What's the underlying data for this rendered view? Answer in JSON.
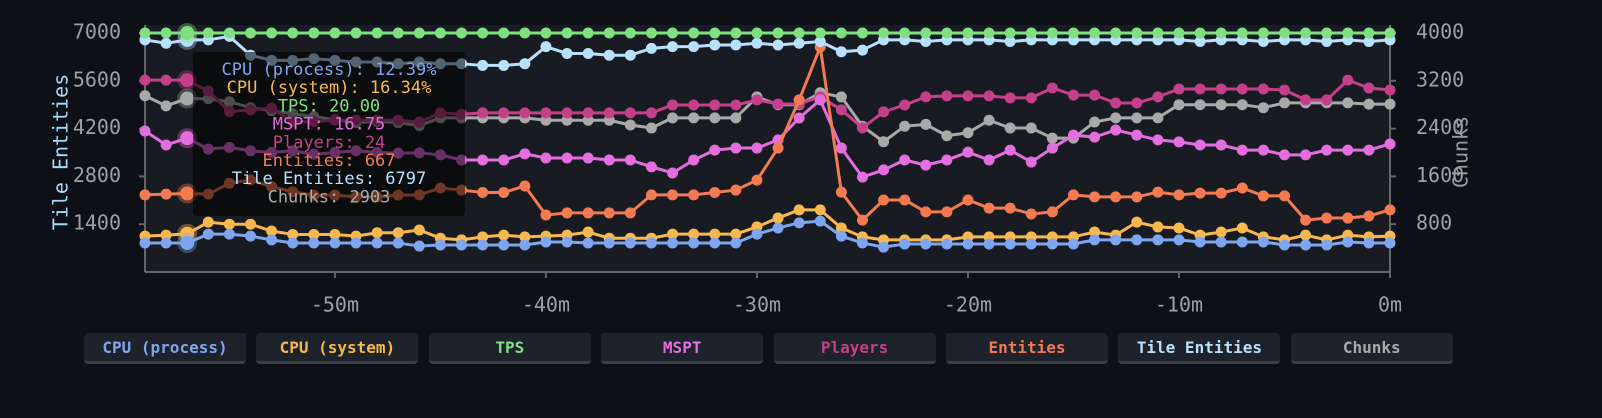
{
  "chart_data": {
    "type": "line",
    "ylabel": "Tile Entities",
    "y2label": "Chunks",
    "xlim": [
      -59,
      0
    ],
    "xticks": [
      {
        "value": -50,
        "label": "-50m"
      },
      {
        "value": -40,
        "label": "-40m"
      },
      {
        "value": -30,
        "label": "-30m"
      },
      {
        "value": -20,
        "label": "-20m"
      },
      {
        "value": -10,
        "label": "-10m"
      },
      {
        "value": 0,
        "label": "0m"
      }
    ],
    "ylim": [
      0,
      7000
    ],
    "yticks": [
      1400,
      2800,
      4200,
      5600,
      7000
    ],
    "y2lim": [
      0,
      4000
    ],
    "y2ticks": [
      800,
      1600,
      2400,
      3200,
      4000
    ],
    "x": [
      -59,
      -58,
      -57,
      -56,
      -55,
      -54,
      -53,
      -52,
      -51,
      -50,
      -49,
      -48,
      -47,
      -46,
      -45,
      -44,
      -43,
      -42,
      -41,
      -40,
      -39,
      -38,
      -37,
      -36,
      -35,
      -34,
      -33,
      -32,
      -31,
      -30,
      -29,
      -28,
      -27,
      -26,
      -25,
      -24,
      -23,
      -22,
      -21,
      -20,
      -19,
      -18,
      -17,
      -16,
      -15,
      -14,
      -13,
      -12,
      -11,
      -10,
      -9,
      -8,
      -7,
      -6,
      -5,
      -4,
      -3,
      -2,
      -1,
      0
    ],
    "highlight_index": 2,
    "tooltip": [
      "CPU (process): 12.39%",
      "CPU (system): 16.34%",
      "TPS: 20.00",
      "MSPT: 16.75",
      "Players: 24",
      "Entities: 667",
      "Tile Entities: 6797",
      "Chunks: 2903"
    ],
    "series": [
      {
        "name": "Chunks",
        "color": "#a9a9a9",
        "axis": "y2",
        "values": [
          2950,
          2780,
          2903,
          2900,
          2850,
          2750,
          2700,
          2650,
          2600,
          2550,
          2500,
          2520,
          2500,
          2450,
          2580,
          2580,
          2580,
          2580,
          2580,
          2540,
          2540,
          2540,
          2540,
          2460,
          2410,
          2580,
          2580,
          2580,
          2580,
          2930,
          2800,
          2800,
          3000,
          2930,
          2440,
          2180,
          2440,
          2470,
          2280,
          2330,
          2540,
          2410,
          2410,
          2240,
          2240,
          2510,
          2580,
          2580,
          2580,
          2800,
          2800,
          2800,
          2800,
          2750,
          2830,
          2830,
          2830,
          2830,
          2810,
          2810
        ]
      },
      {
        "name": "Players",
        "color": "#c4408a",
        "values": [
          5620,
          5620,
          5620,
          5300,
          4700,
          4750,
          4800,
          4400,
          4400,
          4450,
          4450,
          4450,
          4450,
          4390,
          4660,
          4620,
          4660,
          4660,
          4660,
          4660,
          4660,
          4660,
          4660,
          4660,
          4660,
          4890,
          4890,
          4890,
          4890,
          5040,
          4920,
          4920,
          5130,
          4750,
          4220,
          4690,
          4890,
          5130,
          5160,
          5160,
          5160,
          5100,
          5100,
          5390,
          5180,
          5180,
          4950,
          4950,
          5130,
          5360,
          5360,
          5360,
          5360,
          5360,
          5330,
          5040,
          5040,
          5620,
          5390,
          5330
        ]
      },
      {
        "name": "MSPT",
        "color": "#e46ee0",
        "values": [
          4130,
          3720,
          3920,
          3600,
          3650,
          3550,
          3500,
          3550,
          3450,
          3500,
          3550,
          3500,
          3480,
          3490,
          3430,
          3280,
          3280,
          3280,
          3460,
          3340,
          3340,
          3340,
          3280,
          3280,
          3080,
          2900,
          3280,
          3570,
          3630,
          3630,
          3870,
          4510,
          5040,
          3630,
          2780,
          2990,
          3280,
          3130,
          3280,
          3510,
          3280,
          3570,
          3220,
          3630,
          4010,
          3950,
          4160,
          4010,
          3870,
          3810,
          3720,
          3720,
          3570,
          3570,
          3430,
          3430,
          3570,
          3570,
          3570,
          3750
        ]
      },
      {
        "name": "Entities",
        "color": "#f47a52",
        "values": [
          2260,
          2280,
          2300,
          2280,
          2600,
          2700,
          2500,
          2350,
          2250,
          2250,
          2200,
          2200,
          2250,
          2260,
          2460,
          2400,
          2330,
          2330,
          2520,
          1670,
          1730,
          1730,
          1730,
          1730,
          2260,
          2260,
          2260,
          2330,
          2400,
          2690,
          3630,
          5040,
          6590,
          2340,
          1520,
          2110,
          2110,
          1760,
          1760,
          2110,
          1870,
          1870,
          1700,
          1760,
          2260,
          2200,
          2200,
          2200,
          2340,
          2260,
          2310,
          2310,
          2460,
          2230,
          2230,
          1520,
          1580,
          1580,
          1640,
          1820
        ]
      },
      {
        "name": "CPU (system)",
        "color": "#f8b84e",
        "values": [
          1050,
          1080,
          1120,
          1460,
          1400,
          1400,
          1200,
          1100,
          1100,
          1100,
          1050,
          1150,
          1150,
          1230,
          990,
          940,
          1030,
          1080,
          1030,
          1050,
          1080,
          1170,
          990,
          990,
          990,
          1110,
          1110,
          1110,
          1110,
          1320,
          1580,
          1820,
          1820,
          1290,
          1030,
          940,
          940,
          940,
          940,
          1030,
          1030,
          1030,
          1030,
          1030,
          1030,
          1170,
          1080,
          1460,
          1320,
          1290,
          1080,
          1170,
          1290,
          1030,
          940,
          1080,
          940,
          1080,
          1030,
          1050
        ]
      },
      {
        "name": "CPU (process)",
        "color": "#7ea6f0",
        "values": [
          850,
          850,
          850,
          1110,
          1110,
          1050,
          940,
          850,
          850,
          850,
          850,
          850,
          850,
          760,
          790,
          790,
          790,
          790,
          790,
          880,
          880,
          850,
          850,
          850,
          850,
          850,
          850,
          850,
          850,
          1110,
          1290,
          1440,
          1490,
          1050,
          850,
          730,
          820,
          820,
          820,
          820,
          820,
          820,
          820,
          820,
          820,
          940,
          940,
          940,
          940,
          940,
          880,
          880,
          880,
          880,
          790,
          790,
          790,
          880,
          850,
          850
        ]
      },
      {
        "name": "Tile Entities",
        "color": "#b8e0ff",
        "values": [
          6800,
          6700,
          6797,
          6800,
          6900,
          6350,
          6200,
          6200,
          6250,
          6200,
          6150,
          6150,
          6100,
          6150,
          6100,
          6100,
          6050,
          6050,
          6100,
          6600,
          6400,
          6400,
          6350,
          6350,
          6550,
          6600,
          6600,
          6650,
          6650,
          6700,
          6650,
          6700,
          6750,
          6450,
          6500,
          6800,
          6800,
          6750,
          6800,
          6800,
          6800,
          6750,
          6800,
          6800,
          6800,
          6800,
          6800,
          6800,
          6800,
          6800,
          6750,
          6800,
          6800,
          6750,
          6800,
          6800,
          6750,
          6800,
          6750,
          6800
        ]
      },
      {
        "name": "TPS",
        "color": "#7ee07e",
        "values": [
          7000,
          7000,
          7000,
          7000,
          7000,
          7000,
          7000,
          7000,
          7000,
          7000,
          7000,
          7000,
          7000,
          7000,
          7000,
          7000,
          7000,
          7000,
          7000,
          7000,
          7000,
          7000,
          7000,
          7000,
          7000,
          7000,
          7000,
          7000,
          7000,
          7000,
          7000,
          7000,
          7000,
          7000,
          7000,
          7000,
          7000,
          7000,
          7000,
          7000,
          7000,
          7000,
          7000,
          7000,
          7000,
          7000,
          7000,
          7000,
          7000,
          7000,
          7000,
          7000,
          7000,
          7000,
          7000,
          7000,
          7000,
          7000,
          7000,
          7000
        ]
      }
    ],
    "legend": [
      "CPU (process)",
      "CPU (system)",
      "TPS",
      "MSPT",
      "Players",
      "Entities",
      "Tile Entities",
      "Chunks"
    ]
  }
}
